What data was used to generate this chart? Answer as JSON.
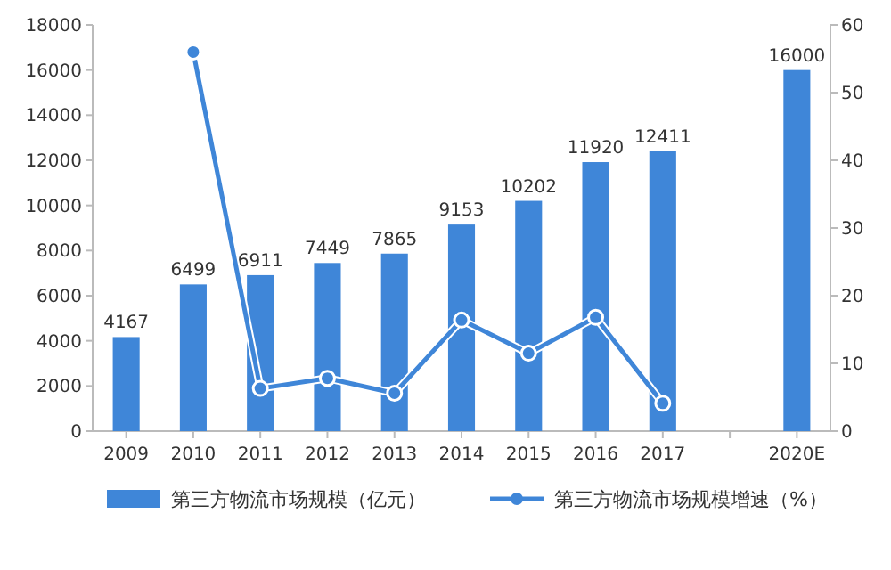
{
  "chart_data": {
    "type": "bar",
    "categories": [
      "2009",
      "2010",
      "2011",
      "2012",
      "2013",
      "2014",
      "2015",
      "2016",
      "2017",
      null,
      "2020E"
    ],
    "series": [
      {
        "name": "第三方物流市场规模（亿元）",
        "color": "#3f86d8",
        "values": [
          4167,
          6499,
          6911,
          7449,
          7865,
          9153,
          10202,
          11920,
          12411,
          null,
          16000
        ],
        "value_labels": [
          "4167",
          "6499",
          "6911",
          "7449",
          "7865",
          "9153",
          "10202",
          "11920",
          "12411",
          null,
          "16000"
        ]
      },
      {
        "name": "第三方物流市场规模增速（%）",
        "type": "line",
        "axis": "y2",
        "color": "#3f86d8",
        "marker": "circle",
        "values": [
          null,
          56,
          6.3,
          7.8,
          5.6,
          16.4,
          11.5,
          16.8,
          4.1,
          null,
          null
        ]
      }
    ],
    "ylim": [
      0,
      18000
    ],
    "yticks": [
      0,
      2000,
      4000,
      6000,
      8000,
      10000,
      12000,
      14000,
      16000,
      18000
    ],
    "y2lim": [
      0,
      60
    ],
    "y2ticks": [
      0,
      10,
      20,
      30,
      40,
      50,
      60
    ],
    "legend": "bottom",
    "grid": false
  }
}
